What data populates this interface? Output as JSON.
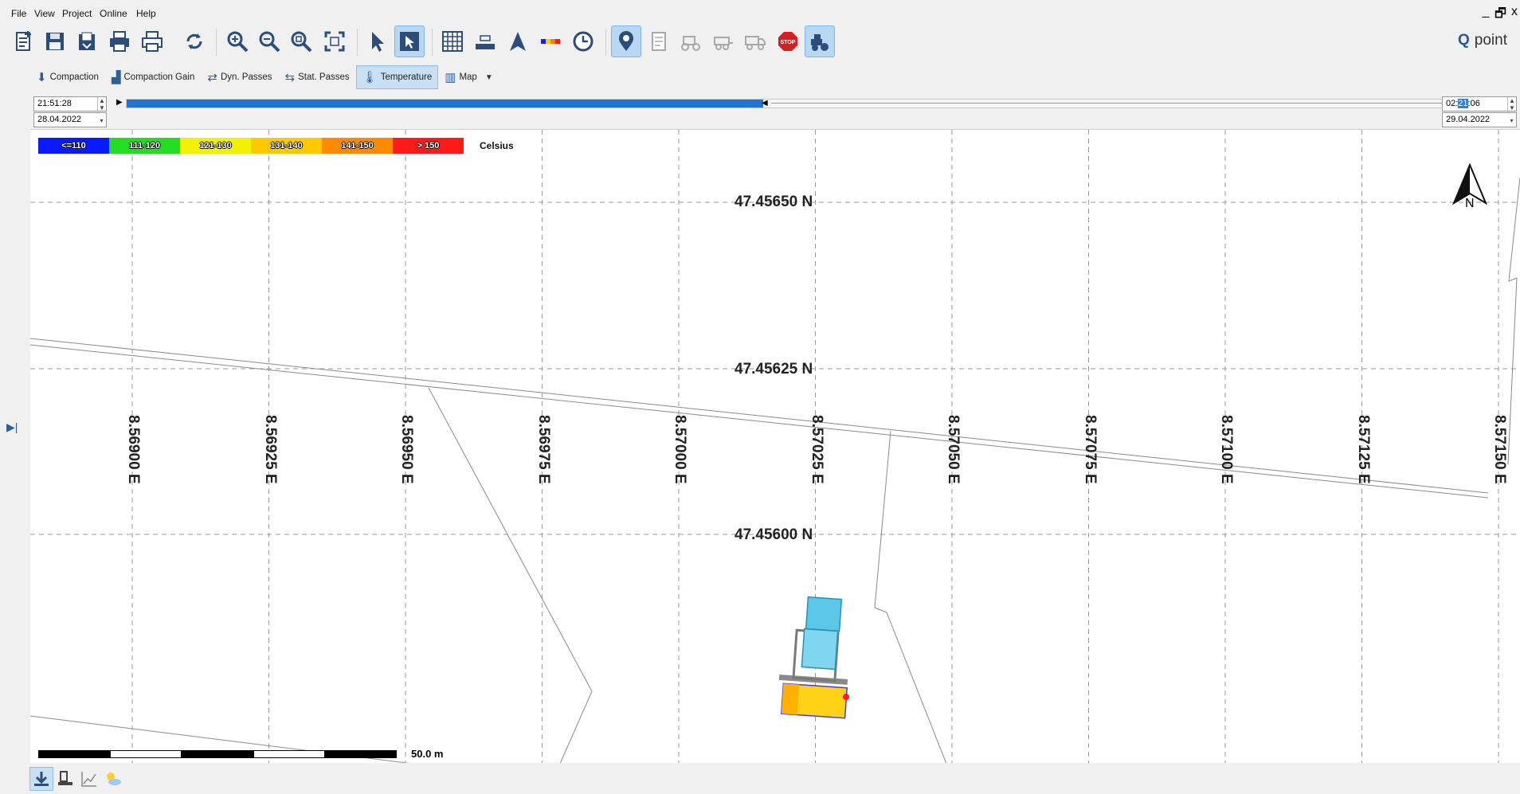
{
  "menu": {
    "items": [
      "File",
      "View",
      "Project",
      "Online",
      "Help"
    ],
    "window_controls": [
      "_",
      "🗗",
      "x"
    ]
  },
  "toolbar": {
    "brand_text": "point",
    "buttons": [
      "new-project-icon",
      "save-icon",
      "export-icon",
      "print-icon",
      "print-preview-icon",
      "refresh-icon",
      "zoom-in-icon",
      "zoom-out-icon",
      "zoom-window-icon",
      "zoom-extents-icon",
      "select-pointer-icon",
      "pan-map-icon",
      "grid-icon",
      "ruler-icon",
      "north-arrow-icon",
      "legend-bar-icon",
      "clock-icon",
      "poi-icon",
      "notes-icon",
      "roller-icon",
      "paver-icon",
      "truck-icon",
      "stop-icon",
      "machines-icon"
    ]
  },
  "modes": {
    "compaction": "Compaction",
    "compaction_gain": "Compaction Gain",
    "dyn_passes": "Dyn. Passes",
    "stat_passes": "Stat. Passes",
    "temperature": "Temperature",
    "map": "Map",
    "active": "Temperature"
  },
  "timerange": {
    "start_time": "21:51:28",
    "start_date": "28.04.2022",
    "end_time_prefix": "02:",
    "end_time_selected": "21",
    "end_time_suffix": ":06",
    "end_date": "29.04.2022",
    "progress": 0.47
  },
  "legend": {
    "unit": "Celsius",
    "ranges": [
      {
        "label": "<=110",
        "color": "#0a1aff"
      },
      {
        "label": "111-120",
        "color": "#22dd22"
      },
      {
        "label": "121-130",
        "color": "#f2f200"
      },
      {
        "label": "131-140",
        "color": "#ffc800"
      },
      {
        "label": "141-150",
        "color": "#ff8a00"
      },
      {
        "label": "> 150",
        "color": "#ff1a1a"
      }
    ]
  },
  "map": {
    "latitudes": [
      "47.45650 N",
      "47.45625 N",
      "47.45600 N"
    ],
    "longitudes": [
      "8.56900 E",
      "8.56925 E",
      "8.56950 E",
      "8.56975 E",
      "8.57000 E",
      "8.57025 E",
      "8.57050 E",
      "8.57075 E",
      "8.57100 E",
      "8.57125 E",
      "8.57150 E"
    ],
    "north_label": "N",
    "scale_label": "50.0 m",
    "colors": {
      "grid": "#9a9a9a",
      "road": "#8a8a8a",
      "paver": "#5bc8e8",
      "mat_hot": "#ffd21a"
    }
  },
  "bottom": {
    "buttons": [
      "download-icon",
      "roller-view-icon",
      "chart-icon",
      "weather-icon"
    ]
  }
}
